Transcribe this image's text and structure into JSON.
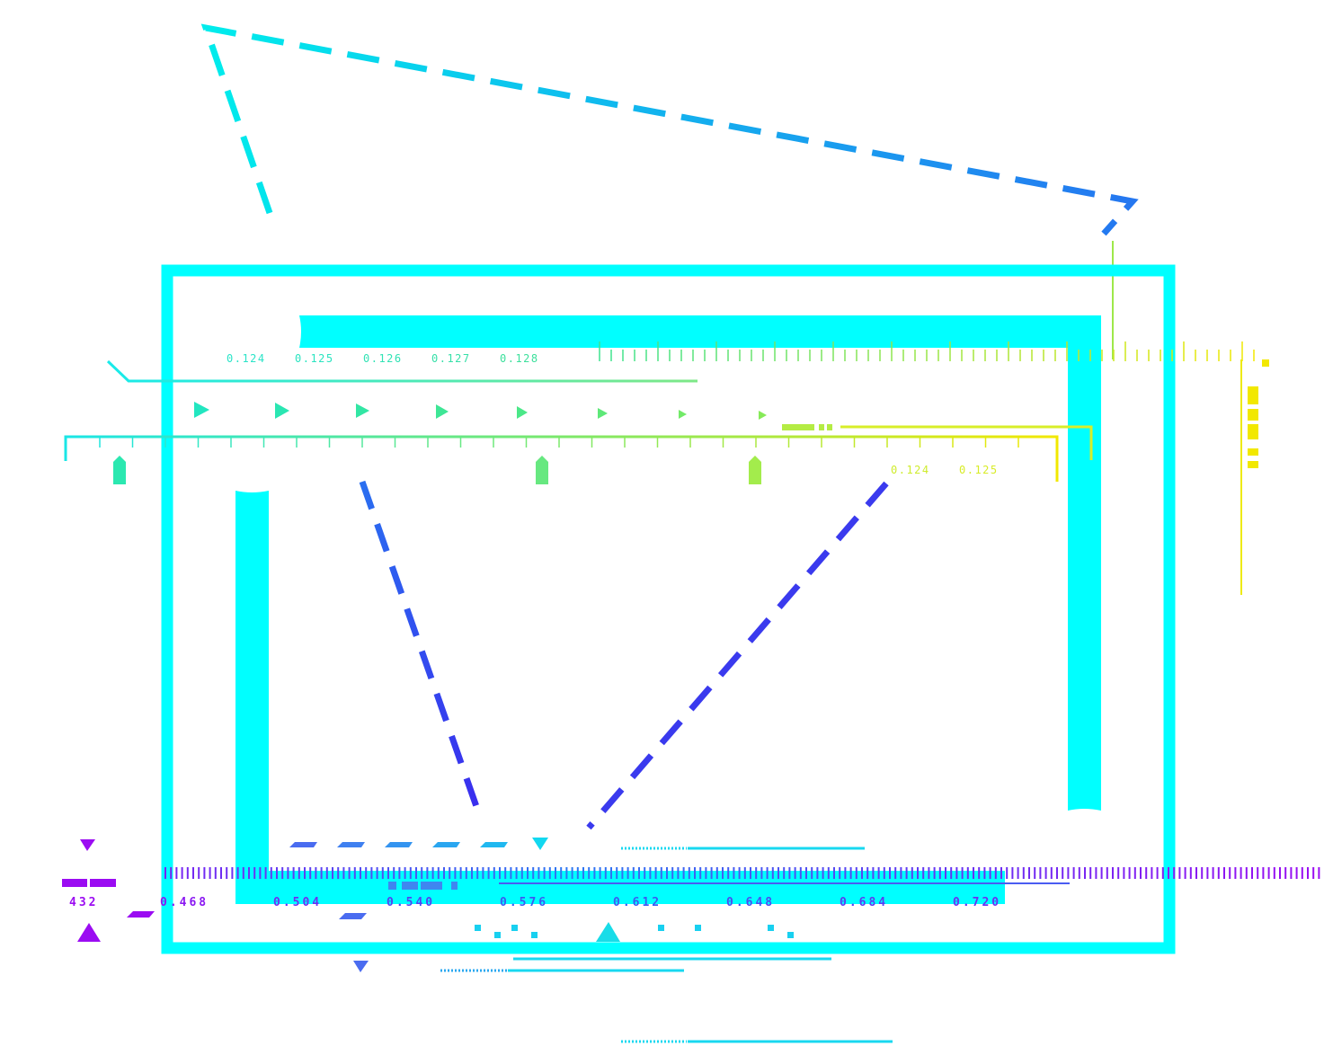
{
  "colors": {
    "cyan": "#00ffff",
    "cyan_bright": "#0ff2f2",
    "blue": "#1e8ef0",
    "indigo": "#3535ee",
    "violet": "#9b0cf2",
    "green": "#41e08a",
    "lime": "#a6f03c",
    "yellow": "#f2e800"
  },
  "top_scale": {
    "labels": [
      "0.124",
      "0.125",
      "0.126",
      "0.127",
      "0.128"
    ]
  },
  "mid_scale": {
    "labels": [
      "0.124",
      "0.125"
    ]
  },
  "bottom_scale": {
    "readout": "432",
    "labels": [
      "0.468",
      "0.504",
      "0.540",
      "0.576",
      "0.612",
      "0.648",
      "0.684",
      "0.720"
    ]
  }
}
